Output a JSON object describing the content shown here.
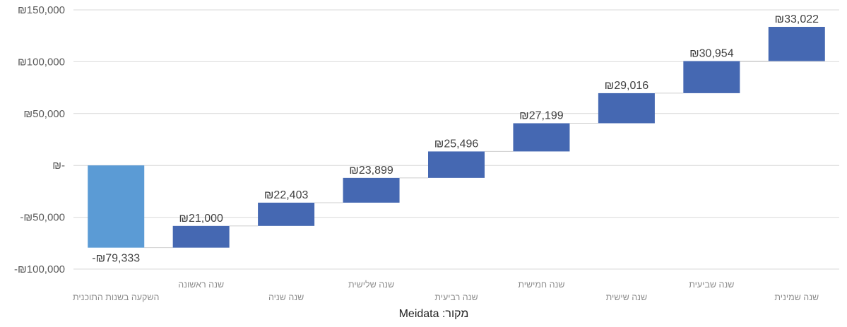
{
  "chart_data": {
    "type": "bar",
    "subtype": "waterfall",
    "title": "",
    "xlabel": "",
    "ylabel": "",
    "ylim": [
      -100000,
      150000
    ],
    "grid": true,
    "legend": "none",
    "y_ticks": [
      {
        "value": 150000,
        "label": "₪150,000"
      },
      {
        "value": 100000,
        "label": "₪100,000"
      },
      {
        "value": 50000,
        "label": "₪50,000"
      },
      {
        "value": 0,
        "label": "₪-"
      },
      {
        "value": -50000,
        "label": "-₪50,000"
      },
      {
        "value": -100000,
        "label": "-₪100,000"
      }
    ],
    "categories": [
      "השקעה בשנות התוכנית",
      "שנה ראשונה",
      "שנה שניה",
      "שנה שלישית",
      "שנה רביעית",
      "שנה חמישית",
      "שנה שישית",
      "שנה שביעית",
      "שנה שמינית"
    ],
    "values": [
      -79333,
      21000,
      22403,
      23899,
      25496,
      27199,
      29016,
      30954,
      33022
    ],
    "value_labels": [
      "-₪79,333",
      "₪21,000",
      "₪22,403",
      "₪23,899",
      "₪25,496",
      "₪27,199",
      "₪29,016",
      "₪30,954",
      "₪33,022"
    ],
    "colors": {
      "initial": "#5b9bd5",
      "increase": "#4568b2",
      "grid": "#d9d9d9",
      "connector": "#cfcfcf"
    }
  },
  "source": "מקור: Meidata"
}
